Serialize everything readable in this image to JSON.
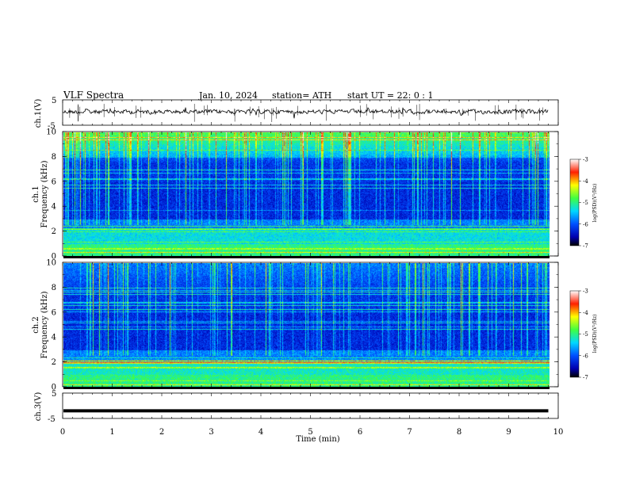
{
  "header": {
    "title": "VLF  Spectra",
    "date": "Jan.  10,  2024",
    "station": "station= ATH",
    "start": "start  UT  =    22: 0   : 1"
  },
  "chart_data": {
    "type": "heatmap",
    "x_axis": {
      "label": "Time  (min)",
      "range": [
        0,
        10
      ],
      "ticks": [
        "0",
        "1",
        "2",
        "3",
        "4",
        "5",
        "6",
        "7",
        "8",
        "9",
        "10"
      ]
    },
    "panels": [
      {
        "id": "ch1-waveform",
        "type": "line",
        "ylabel": "ch.1(V)",
        "ylim": [
          -5,
          5
        ],
        "y_ticks": [
          "5",
          "-5"
        ],
        "data_end_min": 9.8
      },
      {
        "id": "ch1-spectrogram",
        "type": "heatmap",
        "ylabel_top": "ch.1",
        "ylabel": "Frequency  (kHz)",
        "ylim": [
          0,
          10
        ],
        "y_ticks": [
          "10",
          "8",
          "6",
          "4",
          "2",
          "0"
        ],
        "data_end_min": 9.8,
        "colorbar": {
          "label": "log(PSD)(V²/Hz)",
          "range": [
            -7,
            -3
          ],
          "ticks": [
            "-3",
            "-4",
            "-5",
            "-6",
            "-7"
          ]
        }
      },
      {
        "id": "ch2-spectrogram",
        "type": "heatmap",
        "ylabel_top": "ch.2",
        "ylabel": "Frequency  (kHz)",
        "ylim": [
          0,
          10
        ],
        "y_ticks": [
          "10",
          "8",
          "6",
          "4",
          "2",
          "0"
        ],
        "data_end_min": 9.8,
        "colorbar": {
          "label": "log(PSD)(V²/Hz)",
          "range": [
            -7,
            -3
          ],
          "ticks": [
            "-3",
            "-4",
            "-5",
            "-6",
            "-7"
          ]
        }
      },
      {
        "id": "ch3-waveform",
        "type": "line",
        "ylabel": "ch.3(V)",
        "ylim": [
          -5,
          5
        ],
        "y_ticks": [
          "5",
          "-5"
        ],
        "value": -2,
        "data_end_min": 9.8
      }
    ]
  }
}
